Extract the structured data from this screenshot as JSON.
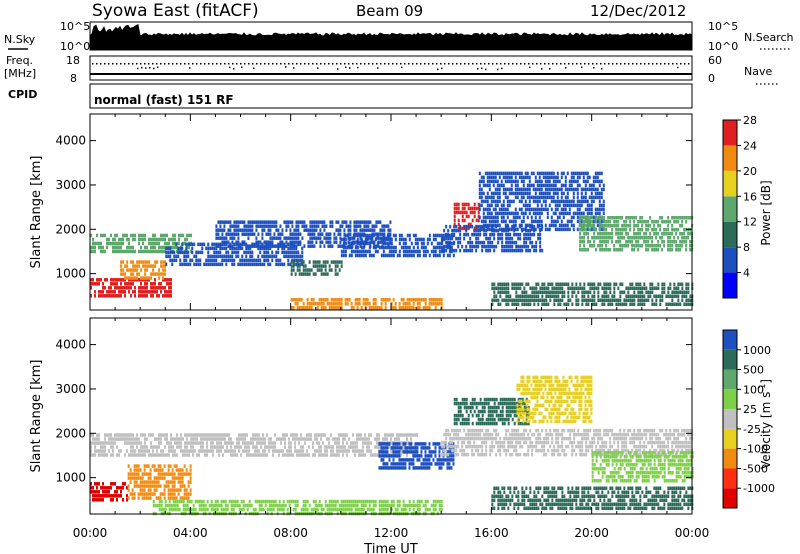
{
  "header": {
    "station": "Syowa East (fitACF)",
    "beam": "Beam 09",
    "date": "12/Dec/2012"
  },
  "noise_panel": {
    "left_label": "N.Sky",
    "right_label": "N.Search",
    "top_tick": "10^5",
    "bottom_tick": "10^0"
  },
  "freq_panel": {
    "left_label_1": "Freq.",
    "left_label_2": "[MHz]",
    "left_top_tick": "18",
    "left_bottom_tick": "8",
    "right_label": "Nave",
    "right_top_tick": "60",
    "right_bottom_tick": "0"
  },
  "cpid_panel": {
    "label": "CPID",
    "value": "normal (fast) 151 RF"
  },
  "x_axis": {
    "label": "Time UT",
    "ticks": [
      "00:00",
      "04:00",
      "08:00",
      "12:00",
      "16:00",
      "20:00",
      "00:00"
    ]
  },
  "chart_data": [
    {
      "type": "heatmap",
      "title": "",
      "xlabel": "Time UT",
      "ylabel": "Slant Range [km]",
      "y_ticks": [
        "1000",
        "2000",
        "3000",
        "4000"
      ],
      "ylim": [
        180,
        4600
      ],
      "xlim_hours": [
        0,
        24
      ],
      "colorbar": {
        "label": "Power [dB]",
        "ticks": [
          "4",
          "8",
          "12",
          "16",
          "20",
          "24",
          "28"
        ],
        "colors": [
          "#0000ff",
          "#1d4fbf",
          "#2c6a5a",
          "#5fa86d",
          "#e6d020",
          "#f08a10",
          "#e02020"
        ]
      },
      "regions": [
        {
          "t0": 0.0,
          "t1": 3.2,
          "r0": 450,
          "r1": 900,
          "value": 28,
          "color": "#e02020"
        },
        {
          "t0": 0.0,
          "t1": 4.0,
          "r0": 1500,
          "r1": 1900,
          "value": 16,
          "color": "#5fa86d"
        },
        {
          "t0": 1.2,
          "t1": 3.0,
          "r0": 900,
          "r1": 1300,
          "value": 22,
          "color": "#f08a10"
        },
        {
          "t0": 3.0,
          "t1": 8.5,
          "r0": 1200,
          "r1": 1700,
          "value": 8,
          "color": "#1d4fbf"
        },
        {
          "t0": 5.0,
          "t1": 12.0,
          "r0": 1600,
          "r1": 2200,
          "value": 8,
          "color": "#1d4fbf"
        },
        {
          "t0": 8.0,
          "t1": 10.0,
          "r0": 1000,
          "r1": 1300,
          "value": 12,
          "color": "#2c6a5a"
        },
        {
          "t0": 8.0,
          "t1": 14.0,
          "r0": 200,
          "r1": 450,
          "value": 18,
          "color": "#f08a10"
        },
        {
          "t0": 10.0,
          "t1": 14.5,
          "r0": 1400,
          "r1": 1900,
          "value": 6,
          "color": "#1d4fbf"
        },
        {
          "t0": 14.5,
          "t1": 15.5,
          "r0": 2000,
          "r1": 2600,
          "value": 26,
          "color": "#e02020"
        },
        {
          "t0": 14.0,
          "t1": 18.0,
          "r0": 1500,
          "r1": 2100,
          "value": 6,
          "color": "#1d4fbf"
        },
        {
          "t0": 15.5,
          "t1": 20.5,
          "r0": 2000,
          "r1": 3300,
          "value": 8,
          "color": "#1d4fbf"
        },
        {
          "t0": 16.0,
          "t1": 24.0,
          "r0": 300,
          "r1": 800,
          "value": 10,
          "color": "#2c6a5a"
        },
        {
          "t0": 19.5,
          "t1": 24.0,
          "r0": 1500,
          "r1": 2300,
          "value": 14,
          "color": "#5fa86d"
        }
      ]
    },
    {
      "type": "heatmap",
      "title": "",
      "xlabel": "Time UT",
      "ylabel": "Slant Range [km]",
      "y_ticks": [
        "1000",
        "2000",
        "3000",
        "4000"
      ],
      "ylim": [
        180,
        4600
      ],
      "xlim_hours": [
        0,
        24
      ],
      "colorbar": {
        "label": "Velocity [m s^-1]",
        "ticks": [
          "1000",
          "500",
          "100",
          "25",
          "-25",
          "-100",
          "-500",
          "-1000"
        ],
        "colors": [
          "#1d4fbf",
          "#2c6a5a",
          "#5fa86d",
          "#7ed04a",
          "#c0c0c0",
          "#e6d020",
          "#f08a10",
          "#ff3010",
          "#e00000"
        ]
      },
      "regions": [
        {
          "t0": 0.0,
          "t1": 1.5,
          "r0": 450,
          "r1": 900,
          "value": -1000,
          "color": "#e00000"
        },
        {
          "t0": 1.5,
          "t1": 4.0,
          "r0": 500,
          "r1": 1300,
          "value": -300,
          "color": "#f08a10"
        },
        {
          "t0": 0.0,
          "t1": 13.0,
          "r0": 1500,
          "r1": 2000,
          "value": 0,
          "color": "#c0c0c0"
        },
        {
          "t0": 2.5,
          "t1": 14.0,
          "r0": 200,
          "r1": 500,
          "value": 60,
          "color": "#7ed04a"
        },
        {
          "t0": 11.5,
          "t1": 14.5,
          "r0": 1200,
          "r1": 1800,
          "value": 600,
          "color": "#1d4fbf"
        },
        {
          "t0": 14.5,
          "t1": 17.5,
          "r0": 2200,
          "r1": 2800,
          "value": 300,
          "color": "#2c6a5a"
        },
        {
          "t0": 14.0,
          "t1": 24.0,
          "r0": 1500,
          "r1": 2100,
          "value": 0,
          "color": "#c0c0c0"
        },
        {
          "t0": 16.0,
          "t1": 24.0,
          "r0": 300,
          "r1": 800,
          "value": 200,
          "color": "#2c6a5a"
        },
        {
          "t0": 17.0,
          "t1": 20.0,
          "r0": 2300,
          "r1": 3300,
          "value": -80,
          "color": "#e6d020"
        },
        {
          "t0": 20.0,
          "t1": 24.0,
          "r0": 900,
          "r1": 1600,
          "value": 50,
          "color": "#7ed04a"
        }
      ]
    }
  ]
}
